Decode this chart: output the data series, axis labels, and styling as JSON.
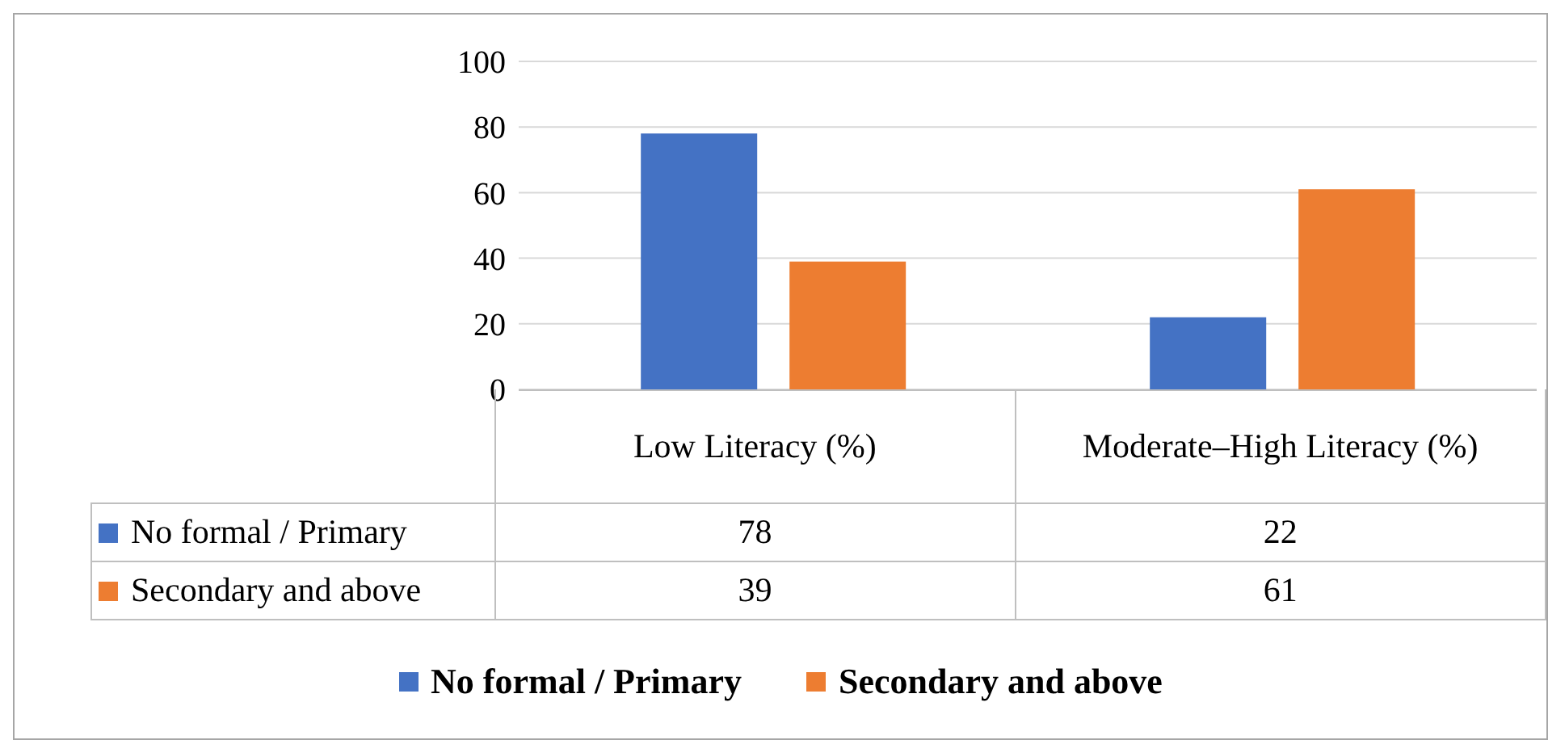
{
  "chart_data": {
    "type": "bar",
    "categories": [
      "Low Literacy (%)",
      "Moderate–High Literacy (%)"
    ],
    "series": [
      {
        "name": "No formal / Primary",
        "color": "#4472c4",
        "values": [
          78,
          22
        ]
      },
      {
        "name": "Secondary and above",
        "color": "#ed7d31",
        "values": [
          39,
          61
        ]
      }
    ],
    "ylim": [
      0,
      100
    ],
    "yticks": [
      0,
      20,
      40,
      60,
      80,
      100
    ],
    "grid": "y",
    "legend": "bottom",
    "data_labels": true
  }
}
